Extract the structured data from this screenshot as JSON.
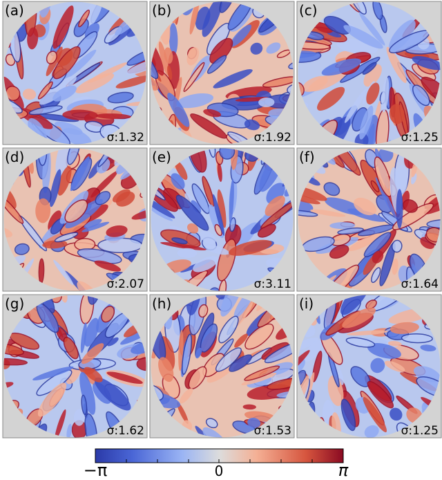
{
  "panels": [
    {
      "label": "(a)",
      "annotation": "σ:1.32"
    },
    {
      "label": "(b)",
      "annotation": "σ:1.92"
    },
    {
      "label": "(c)",
      "annotation": "σ:1.25"
    },
    {
      "label": "(d)",
      "annotation": "σ:2.07"
    },
    {
      "label": "(e)",
      "annotation": "σ:3.11"
    },
    {
      "label": "(f)",
      "annotation": "σ:1.64"
    },
    {
      "label": "(g)",
      "annotation": "σ:1.62"
    },
    {
      "label": "(h)",
      "annotation": "σ:1.53"
    },
    {
      "label": "(i)",
      "annotation": "σ:1.25"
    }
  ],
  "colorbar": {
    "min_label": "−π",
    "mid_label": "0",
    "max_label": "π"
  }
}
